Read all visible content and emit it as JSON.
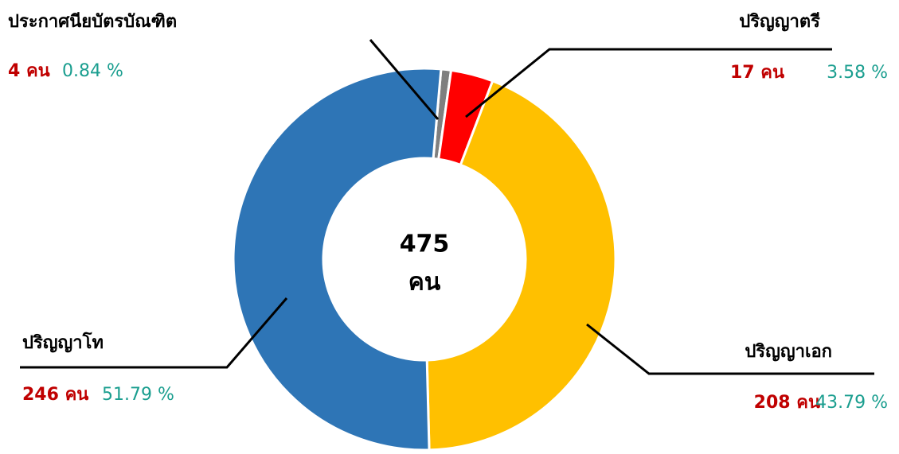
{
  "chart_data": {
    "type": "donut",
    "categories": [
      "ประกาศนียบัตรบัณฑิต",
      "ปริญญาตรี",
      "ปริญญาเอก",
      "ปริญญาโท"
    ],
    "values": [
      4,
      17,
      208,
      246
    ],
    "value_labels": [
      "4 คน",
      "17 คน",
      "208 คน",
      "246 คน"
    ],
    "percents": [
      0.84,
      3.58,
      43.79,
      51.79
    ],
    "percent_labels": [
      "0.84 %",
      "3.58 %",
      "43.79 %",
      "51.79 %"
    ],
    "colors": [
      "#7f7f7f",
      "#ff0000",
      "#ffc000",
      "#2e75b6"
    ],
    "total": 475,
    "total_unit": "คน"
  }
}
